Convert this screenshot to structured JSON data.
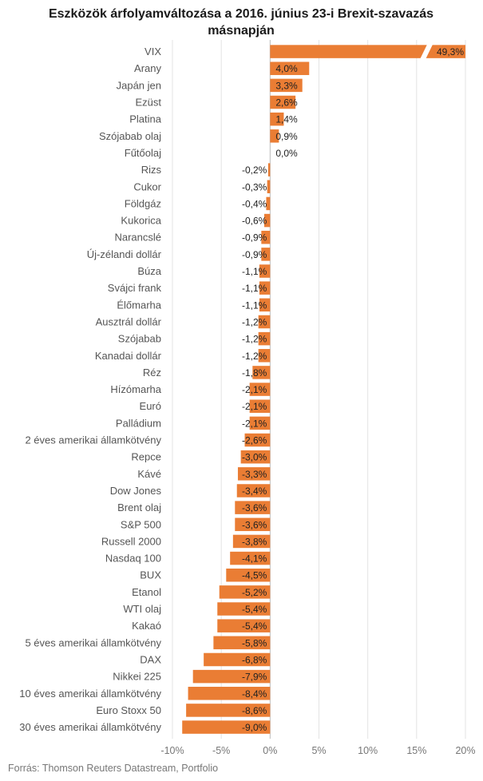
{
  "chart_data": {
    "type": "bar",
    "orientation": "horizontal",
    "title_lines": [
      "Eszközök árfolyamváltozása a 2016. június 23-i Brexit-szavazás",
      "másnapján"
    ],
    "source": "Forrás: Thomson Reuters Datastream, Portfolio",
    "xlim": [
      -10,
      20
    ],
    "x_ticks": [
      -10,
      -5,
      0,
      5,
      10,
      15,
      20
    ],
    "x_tick_labels": [
      "-10%",
      "-5%",
      "0%",
      "5%",
      "10%",
      "15%",
      "20%"
    ],
    "grid": true,
    "axis_break": true,
    "bar_color": "#ea7d34",
    "categories": [
      "VIX",
      "Arany",
      "Japán jen",
      "Ezüst",
      "Platina",
      "Szójabab olaj",
      "Fűtőolaj",
      "Rizs",
      "Cukor",
      "Földgáz",
      "Kukorica",
      "Narancslé",
      "Új-zélandi dollár",
      "Búza",
      "Svájci frank",
      "Élőmarha",
      "Ausztrál dollár",
      "Szójabab",
      "Kanadai dollár",
      "Réz",
      "Hízómarha",
      "Euró",
      "Palládium",
      "2 éves amerikai államkötvény",
      "Repce",
      "Kávé",
      "Dow Jones",
      "Brent olaj",
      "S&P 500",
      "Russell 2000",
      "Nasdaq 100",
      "BUX",
      "Etanol",
      "WTI olaj",
      "Kakaó",
      "5 éves amerikai államkötvény",
      "DAX",
      "Nikkei 225",
      "10 éves amerikai államkötvény",
      "Euro Stoxx 50",
      "30 éves amerikai államkötvény"
    ],
    "values": [
      49.3,
      4.0,
      3.3,
      2.6,
      1.4,
      0.9,
      0.0,
      -0.2,
      -0.3,
      -0.4,
      -0.6,
      -0.9,
      -0.9,
      -1.1,
      -1.1,
      -1.1,
      -1.2,
      -1.2,
      -1.2,
      -1.8,
      -2.1,
      -2.1,
      -2.1,
      -2.6,
      -3.0,
      -3.3,
      -3.4,
      -3.6,
      -3.6,
      -3.8,
      -4.1,
      -4.5,
      -5.2,
      -5.4,
      -5.4,
      -5.8,
      -6.8,
      -7.9,
      -8.4,
      -8.6,
      -9.0
    ],
    "value_labels": [
      "49,3%",
      "4,0%",
      "3,3%",
      "2,6%",
      "1,4%",
      "0,9%",
      "0,0%",
      "-0,2%",
      "-0,3%",
      "-0,4%",
      "-0,6%",
      "-0,9%",
      "-0,9%",
      "-1,1%",
      "-1,1%",
      "-1,1%",
      "-1,2%",
      "-1,2%",
      "-1,2%",
      "-1,8%",
      "-2,1%",
      "-2,1%",
      "-2,1%",
      "-2,6%",
      "-3,0%",
      "-3,3%",
      "-3,4%",
      "-3,6%",
      "-3,6%",
      "-3,8%",
      "-4,1%",
      "-4,5%",
      "-5,2%",
      "-5,4%",
      "-5,4%",
      "-5,8%",
      "-6,8%",
      "-7,9%",
      "-8,4%",
      "-8,6%",
      "-9,0%"
    ]
  }
}
